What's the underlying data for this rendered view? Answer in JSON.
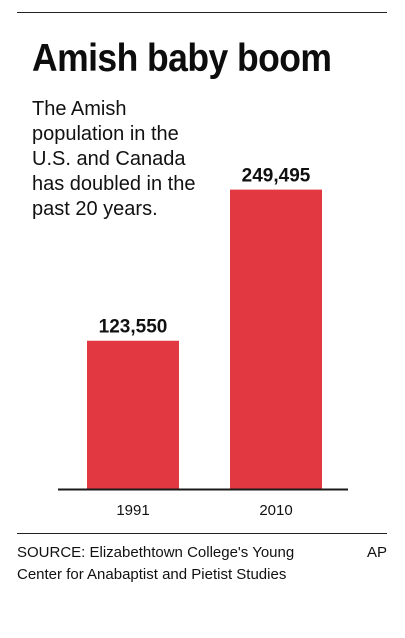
{
  "title": "Amish baby boom",
  "subtitle": "The Amish population in the U.S. and Canada has doubled in the past 20 years.",
  "chart_data": {
    "type": "bar",
    "categories": [
      "1991",
      "2010"
    ],
    "values": [
      123550,
      249495
    ],
    "value_labels": [
      "123,550",
      "249,495"
    ],
    "ylim": [
      0,
      300000
    ],
    "grid": false,
    "bar_color": "#e23842"
  },
  "source": "SOURCE: Elizabethtown College's Young Center for Anabaptist and Pietist Studies",
  "credit": "AP"
}
